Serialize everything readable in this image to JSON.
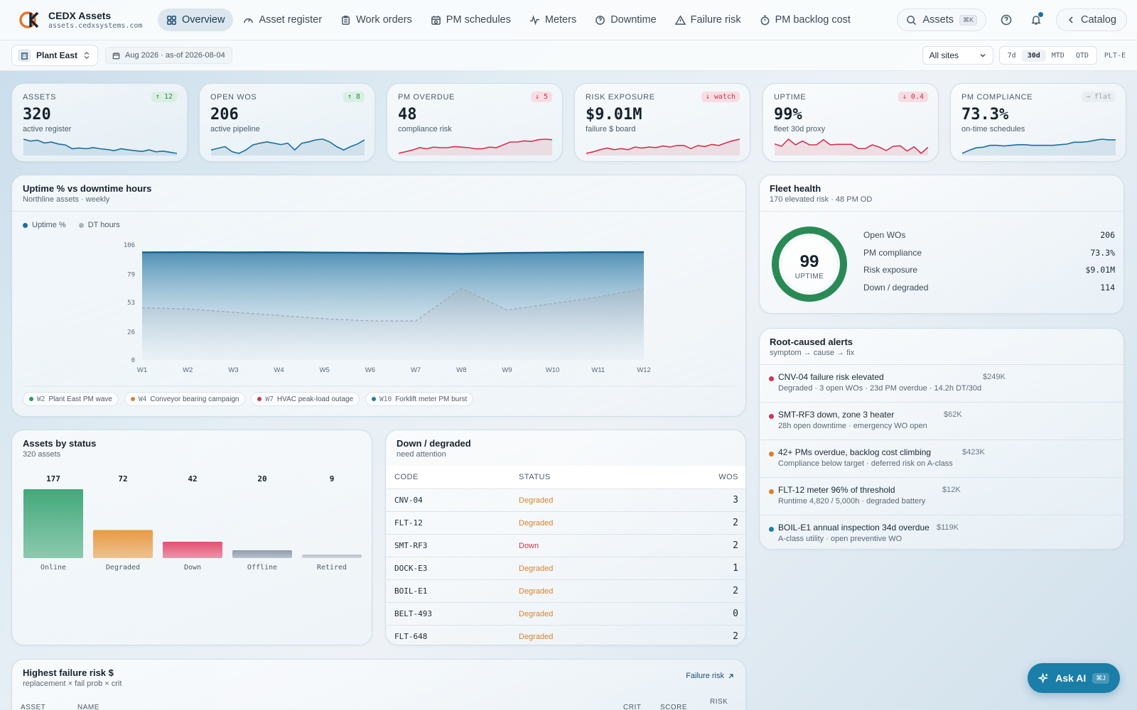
{
  "brand": {
    "title": "CEDX Assets",
    "url": "assets.cedxsystems.com"
  },
  "nav": {
    "items": [
      {
        "label": "Overview",
        "icon": "grid-icon",
        "active": true
      },
      {
        "label": "Asset register",
        "icon": "gauge-icon"
      },
      {
        "label": "Work orders",
        "icon": "clipboard-icon"
      },
      {
        "label": "PM schedules",
        "icon": "calendar-clock-icon"
      },
      {
        "label": "Meters",
        "icon": "pulse-icon"
      },
      {
        "label": "Downtime",
        "icon": "clock-circle-icon"
      },
      {
        "label": "Failure risk",
        "icon": "warning-triangle-icon"
      },
      {
        "label": "PM backlog cost",
        "icon": "stopwatch-icon"
      }
    ],
    "search_label": "Assets",
    "search_kbd": "⌘K",
    "catalog_label": "Catalog"
  },
  "filters": {
    "site": "Plant East",
    "date": "Aug 2026 · as-of 2026-08-04",
    "all_sites": "All sites",
    "ranges": [
      "7d",
      "30d",
      "MTD",
      "QTD"
    ],
    "active_range": "30d",
    "plant_code": "PLT-E"
  },
  "kpis": [
    {
      "label": "ASSETS",
      "value": "320",
      "sub": "active register",
      "delta": "↑ 12",
      "trend": "up",
      "color": "#1b6f9e",
      "spark": [
        8,
        7,
        7.5,
        6,
        6.5,
        5.5,
        5,
        3,
        3.4,
        3,
        3.6,
        3,
        2.6,
        2,
        3,
        2.4,
        2,
        1.6,
        2.4,
        1.4,
        1.8,
        1.2,
        0.6
      ]
    },
    {
      "label": "OPEN WOS",
      "value": "206",
      "sub": "active pipeline",
      "delta": "↑ 8",
      "trend": "up",
      "color": "#1b6f9e",
      "spark": [
        2,
        2.5,
        3,
        1.5,
        1,
        2,
        3.5,
        4,
        4.4,
        4,
        3.6,
        4,
        2,
        4,
        4.4,
        5,
        5.2,
        4.4,
        3,
        2,
        3,
        3.8,
        5
      ]
    },
    {
      "label": "PM OVERDUE",
      "value": "48",
      "sub": "compliance risk",
      "delta": "↓ 5",
      "trend": "down",
      "color": "#d0344f",
      "spark": [
        1,
        1.6,
        2.2,
        3,
        2.6,
        3.2,
        3,
        3,
        3.4,
        3.2,
        3,
        2.6,
        2.6,
        3.2,
        3,
        4,
        5,
        5,
        5.4,
        5.2,
        5.8,
        6,
        5.8
      ]
    },
    {
      "label": "RISK EXPOSURE",
      "value": "$9.01M",
      "sub": "failure $ board",
      "delta": "↓ watch",
      "trend": "down",
      "color": "#d0344f",
      "spark": [
        1.6,
        2.2,
        3,
        3.6,
        3,
        3.4,
        3,
        4,
        3.6,
        4,
        3.8,
        4.4,
        4,
        4.6,
        4.6,
        3.4,
        4.6,
        4.2,
        5,
        4.6,
        5.6,
        6.4,
        7
      ]
    },
    {
      "label": "UPTIME",
      "value": "99%",
      "sub": "fleet 30d proxy",
      "delta": "↓ 0.4",
      "trend": "down",
      "color": "#d0344f",
      "spark": [
        5,
        4,
        7,
        4.6,
        6.2,
        4.6,
        4.6,
        6.8,
        4.6,
        4.8,
        4.8,
        4.8,
        3,
        3,
        4.6,
        3.6,
        2.2,
        4,
        4.2,
        2,
        3.8,
        1,
        3.6
      ]
    },
    {
      "label": "PM COMPLIANCE",
      "value": "73.3%",
      "sub": "on-time schedules",
      "delta": "→ flat",
      "trend": "flat",
      "color": "#1b6f9e",
      "spark": [
        1,
        2,
        2.8,
        3,
        3.6,
        3.6,
        3.4,
        3.6,
        3.8,
        3.8,
        3.6,
        3.6,
        3.6,
        3.6,
        3.8,
        4,
        4.6,
        4.6,
        4.8,
        5.2,
        5.6,
        5.4,
        5.4
      ]
    }
  ],
  "uptime_chart": {
    "title": "Uptime % vs downtime hours",
    "subtitle": "Northline assets · weekly",
    "legend": [
      "Uptime %",
      "DT hours"
    ],
    "events": [
      {
        "week": "W2",
        "label": "Plant East PM wave",
        "color": "#2a9a60"
      },
      {
        "week": "W4",
        "label": "Conveyor bearing campaign",
        "color": "#d9822b"
      },
      {
        "week": "W7",
        "label": "HVAC peak-load outage",
        "color": "#d0344f"
      },
      {
        "week": "W10",
        "label": "Forklift meter PM burst",
        "color": "#1a7ea8"
      }
    ]
  },
  "chart_data": {
    "type": "area",
    "categories": [
      "W1",
      "W2",
      "W3",
      "W4",
      "W5",
      "W6",
      "W7",
      "W8",
      "W9",
      "W10",
      "W11",
      "W12"
    ],
    "series": [
      {
        "name": "Uptime %",
        "values": [
          99.2,
          99.4,
          99.1,
          99.3,
          99.0,
          98.8,
          98.6,
          97.8,
          98.7,
          99.0,
          99.3,
          99.4
        ],
        "color": "#1b6f9e"
      },
      {
        "name": "DT hours",
        "values": [
          48,
          47,
          44,
          41,
          38,
          36,
          36,
          66,
          46,
          52,
          58,
          66
        ],
        "color": "#9aa8b5"
      }
    ],
    "yticks": [
      0,
      26,
      53,
      79,
      106
    ],
    "ylim": [
      0,
      106
    ],
    "grid": false,
    "legend_position": "top-left"
  },
  "fleet": {
    "title": "Fleet health",
    "subtitle": "170 elevated risk · 48 PM OD",
    "gauge_value": "99",
    "gauge_label": "UPTIME",
    "gauge_fraction": 0.99,
    "metrics": [
      {
        "label": "Open WOs",
        "value": "206"
      },
      {
        "label": "PM compliance",
        "value": "73.3%"
      },
      {
        "label": "Risk exposure",
        "value": "$9.01M"
      },
      {
        "label": "Down / degraded",
        "value": "114"
      }
    ]
  },
  "alerts": {
    "title": "Root-caused alerts",
    "subtitle": "symptom → cause → fix",
    "items": [
      {
        "title": "CNV-04 failure risk elevated",
        "sub": "Degraded · 3 open WOs · 23d PM overdue · 14.2h DT/30d",
        "amount": "$249K",
        "color": "#d0344f"
      },
      {
        "title": "SMT-RF3 down, zone 3 heater",
        "sub": "28h open downtime · emergency WO open",
        "amount": "$62K",
        "color": "#d0344f"
      },
      {
        "title": "42+ PMs overdue, backlog cost climbing",
        "sub": "Compliance below target · deferred risk on A-class",
        "amount": "$423K",
        "color": "#d9822b"
      },
      {
        "title": "FLT-12 meter 96% of threshold",
        "sub": "Runtime 4,820 / 5,000h · degraded battery",
        "amount": "$12K",
        "color": "#d9822b"
      },
      {
        "title": "BOIL-E1 annual inspection 34d overdue",
        "sub": "A-class utility · open preventive WO",
        "amount": "$119K",
        "color": "#1a7ea8"
      }
    ]
  },
  "status_chart": {
    "title": "Assets by status",
    "subtitle": "320 assets",
    "categories": [
      "Online",
      "Degraded",
      "Down",
      "Offline",
      "Retired"
    ],
    "values": [
      177,
      72,
      42,
      20,
      9
    ],
    "colors": [
      "#3aa473",
      "#e8953a",
      "#e2486a",
      "#8a97a8",
      "#b4bcc6"
    ]
  },
  "down_table": {
    "title": "Down / degraded",
    "subtitle": "need attention",
    "columns": [
      "CODE",
      "STATUS",
      "WOS"
    ],
    "rows": [
      {
        "code": "CNV-04",
        "status": "Degraded",
        "wos": "3"
      },
      {
        "code": "FLT-12",
        "status": "Degraded",
        "wos": "2"
      },
      {
        "code": "SMT-RF3",
        "status": "Down",
        "wos": "2"
      },
      {
        "code": "DOCK-E3",
        "status": "Degraded",
        "wos": "1"
      },
      {
        "code": "BOIL-E1",
        "status": "Degraded",
        "wos": "2"
      },
      {
        "code": "BELT-493",
        "status": "Degraded",
        "wos": "0"
      },
      {
        "code": "FLT-648",
        "status": "Degraded",
        "wos": "2"
      }
    ]
  },
  "risk_table": {
    "title": "Highest failure risk $",
    "subtitle": "replacement × fail prob × crit",
    "link": "Failure risk",
    "columns": [
      "ASSET",
      "NAME",
      "CRIT",
      "SCORE",
      "RISK"
    ]
  },
  "askai": {
    "label": "Ask AI",
    "kbd": "⌘J"
  }
}
